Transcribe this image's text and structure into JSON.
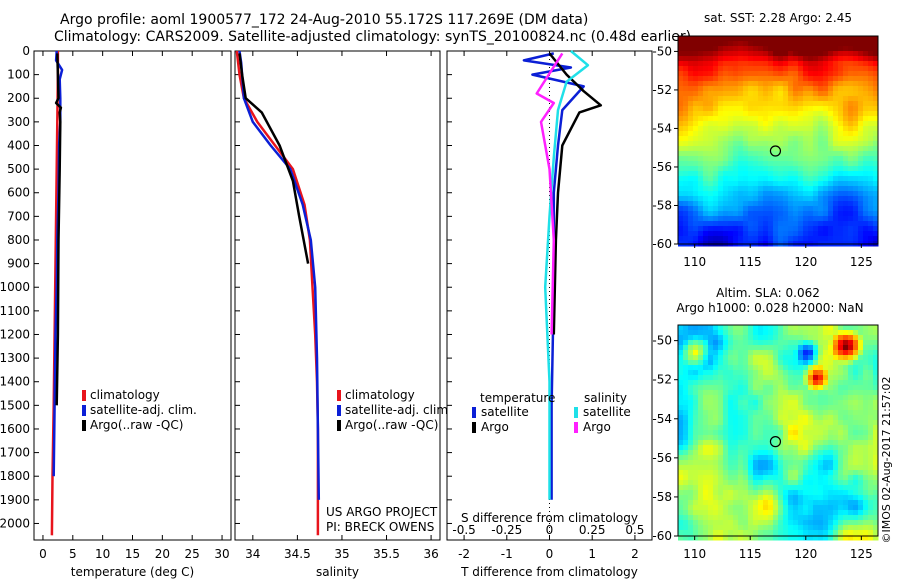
{
  "header": {
    "line1": "Argo profile: aoml 1900577_172 24-Aug-2010 55.172S 117.269E (DM data)",
    "line2": "Climatology: CARS2009. Satellite-adjusted climatology: synTS_20100824.nc (0.48d earlier)"
  },
  "colors": {
    "climatology": "#e8141c",
    "satellite": "#0b1fd6",
    "argo": "#000000",
    "sat_s": "#1fe0e8",
    "argo_s": "#ff20ff"
  },
  "chart_data": [
    {
      "type": "line",
      "panel": "temperature",
      "xlabel": "temperature (deg C)",
      "ylabel": "",
      "xlim": [
        -1.5,
        31.5
      ],
      "ylim": [
        2070,
        0
      ],
      "xticks": [
        "0",
        "5",
        "10",
        "15",
        "20",
        "25",
        "30"
      ],
      "yticks": [
        "0",
        "100",
        "200",
        "300",
        "400",
        "500",
        "600",
        "700",
        "800",
        "900",
        "1000",
        "1100",
        "1200",
        "1300",
        "1400",
        "1500",
        "1600",
        "1700",
        "1800",
        "1900",
        "2000"
      ],
      "legend": [
        "climatology",
        "satellite-adj. clim.",
        "Argo(..raw -QC)"
      ],
      "series": [
        {
          "name": "climatology",
          "color": "#e8141c",
          "x": [
            2.5,
            2.5,
            2.4,
            2.3,
            2.2,
            2.1,
            2.0,
            1.9,
            1.8,
            1.6,
            1.5
          ],
          "y": [
            0,
            100,
            300,
            500,
            700,
            900,
            1100,
            1300,
            1500,
            1800,
            2050
          ]
        },
        {
          "name": "satellite-adj. clim.",
          "color": "#0b1fd6",
          "x": [
            2.3,
            2.2,
            3.2,
            2.8,
            2.9,
            2.9,
            2.7,
            2.6,
            2.4,
            2.3,
            2.1,
            2.0,
            1.9,
            1.8
          ],
          "y": [
            0,
            40,
            80,
            120,
            200,
            300,
            400,
            600,
            800,
            1000,
            1200,
            1400,
            1600,
            1800
          ]
        },
        {
          "name": "Argo(..raw -QC)",
          "color": "#000000",
          "x": [
            2.4,
            2.5,
            2.6,
            2.2,
            3.0,
            2.8,
            2.9,
            2.8,
            2.6,
            2.5,
            2.3
          ],
          "y": [
            10,
            100,
            200,
            220,
            240,
            260,
            300,
            500,
            800,
            1200,
            1500
          ]
        }
      ]
    },
    {
      "type": "line",
      "panel": "salinity",
      "xlabel": "salinity",
      "xlim": [
        33.8,
        36.1
      ],
      "ylim": [
        2070,
        0
      ],
      "xticks": [
        "34",
        "34.5",
        "35",
        "35.5",
        "36"
      ],
      "legend": [
        "climatology",
        "satellite-adj. clim.",
        "Argo(..raw -QC)"
      ],
      "annotation": [
        "US ARGO PROJECT",
        "PI: BRECK OWENS"
      ],
      "series": [
        {
          "name": "climatology",
          "color": "#e8141c",
          "x": [
            33.82,
            33.85,
            33.9,
            34.05,
            34.25,
            34.45,
            34.58,
            34.64,
            34.67,
            34.7,
            34.72,
            34.73,
            34.73,
            34.73
          ],
          "y": [
            0,
            100,
            200,
            300,
            400,
            500,
            650,
            800,
            1000,
            1200,
            1400,
            1600,
            1800,
            2050
          ]
        },
        {
          "name": "satellite-adj. clim.",
          "color": "#0b1fd6",
          "x": [
            33.85,
            33.87,
            33.9,
            34.0,
            34.2,
            34.42,
            34.56,
            34.65,
            34.7,
            34.72,
            34.73,
            34.74
          ],
          "y": [
            0,
            50,
            200,
            300,
            400,
            500,
            650,
            800,
            1000,
            1300,
            1600,
            1900
          ]
        },
        {
          "name": "Argo(..raw -QC)",
          "color": "#000000",
          "x": [
            33.85,
            33.88,
            33.92,
            34.1,
            34.3,
            34.45,
            34.52,
            34.62
          ],
          "y": [
            10,
            100,
            200,
            260,
            400,
            550,
            700,
            900
          ]
        }
      ]
    },
    {
      "type": "line",
      "panel": "difference",
      "xlabel": "T difference from climatology",
      "xlabel_top": "S difference from climatology",
      "xlim": [
        -2.4,
        2.4
      ],
      "ylim": [
        2070,
        0
      ],
      "xticks": [
        "-2",
        "-1",
        "0",
        "1",
        "2"
      ],
      "sticks": [
        "-0.5",
        "-0.25",
        "0",
        "0.25",
        "0.5"
      ],
      "legend_headers": [
        "temperature",
        "salinity"
      ],
      "legend": [
        "satellite",
        "Argo",
        "satellite",
        "Argo"
      ],
      "series": [
        {
          "name": "satellite",
          "group": "temperature",
          "color": "#0b1fd6",
          "x": [
            0.1,
            -0.6,
            0.5,
            -0.4,
            0.8,
            0.3,
            0.2,
            0.1,
            0.1,
            0.05,
            0.05
          ],
          "y": [
            10,
            40,
            70,
            100,
            150,
            250,
            400,
            600,
            1000,
            1500,
            1900
          ]
        },
        {
          "name": "Argo",
          "group": "temperature",
          "color": "#000000",
          "x": [
            0,
            0.4,
            0.8,
            1.2,
            0.7,
            0.3,
            0.2,
            0.15,
            0.1
          ],
          "y": [
            10,
            100,
            170,
            230,
            260,
            400,
            600,
            800,
            1200
          ]
        },
        {
          "name": "satellite",
          "group": "salinity",
          "color": "#1fe0e8",
          "x": [
            0.5,
            0.9,
            0.4,
            0.2,
            0.1,
            0.0,
            -0.1,
            0.0,
            0.0
          ],
          "y": [
            0,
            60,
            130,
            250,
            450,
            700,
            1000,
            1400,
            1900
          ]
        },
        {
          "name": "Argo",
          "group": "salinity",
          "color": "#ff20ff",
          "x": [
            0.3,
            -0.3,
            0.1,
            -0.2,
            0.0,
            0.1,
            0.05
          ],
          "y": [
            10,
            180,
            220,
            300,
            500,
            800,
            1200
          ]
        }
      ]
    },
    {
      "type": "heatmap",
      "panel": "sst_map",
      "title": "sat. SST: 2.28 Argo: 2.45",
      "xticks": [
        "110",
        "115",
        "120",
        "125"
      ],
      "yticks": [
        "-50",
        "-52",
        "-54",
        "-56",
        "-58",
        "-60"
      ],
      "xlim": [
        108.5,
        126.5
      ],
      "ylim": [
        -60,
        -49.2
      ],
      "marker": {
        "lon": 117.27,
        "lat": -55.17
      }
    },
    {
      "type": "heatmap",
      "panel": "sla_map",
      "title_lines": [
        "Altim. SLA: 0.062",
        "Argo h1000: 0.028 h2000: NaN"
      ],
      "xticks": [
        "110",
        "115",
        "120",
        "125"
      ],
      "yticks": [
        "-50",
        "-52",
        "-54",
        "-56",
        "-58",
        "-60"
      ],
      "xlim": [
        108.5,
        126.5
      ],
      "ylim": [
        -60,
        -49.2
      ],
      "marker": {
        "lon": 117.27,
        "lat": -55.17
      }
    }
  ],
  "credit": "©IMOS 02-Aug-2017 21:57:02"
}
